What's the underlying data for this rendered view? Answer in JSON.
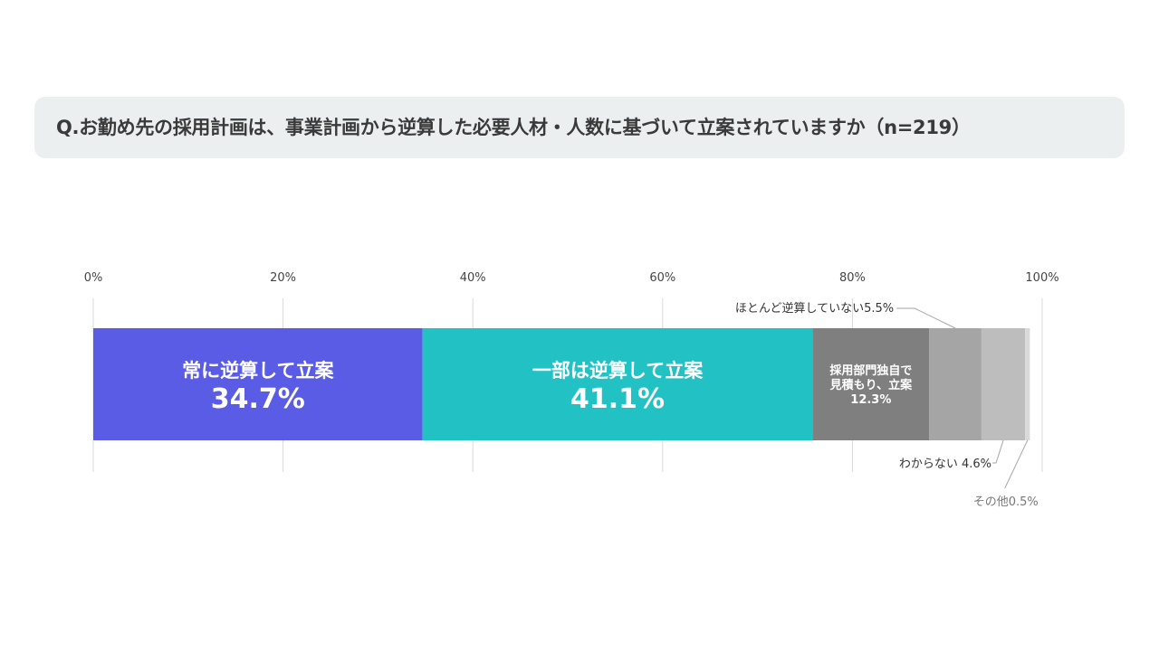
{
  "question": {
    "text": "Q.お勤め先の採用計画は、事業計画から逆算した必要人材・人数に基づいて立案されていますか（n=219）"
  },
  "chart_data": {
    "type": "bar",
    "orientation": "horizontal",
    "stacked": true,
    "xlim": [
      0,
      100
    ],
    "ticks": [
      "0%",
      "20%",
      "40%",
      "60%",
      "80%",
      "100%"
    ],
    "grid": true,
    "series": [
      {
        "name": "常に逆算して立案",
        "value": 34.7,
        "value_label": "34.7%",
        "color": "#5a5ce6",
        "label_position": "inside"
      },
      {
        "name": "一部は逆算して立案",
        "value": 41.1,
        "value_label": "41.1%",
        "color": "#21c1c4",
        "label_position": "inside"
      },
      {
        "name": "採用部門独自で見積もり、立案",
        "value": 12.3,
        "value_label": "12.3%",
        "color": "#7f7f7f",
        "label_position": "inside",
        "label_lines": [
          "採用部門独自で",
          "見積もり、立案",
          "12.3%"
        ]
      },
      {
        "name": "ほとんど逆算していない",
        "value": 5.5,
        "value_label": "5.5%",
        "color": "#a5a5a5",
        "label_position": "above",
        "callout": "ほとんど逆算していない5.5%"
      },
      {
        "name": "わからない",
        "value": 4.6,
        "value_label": "4.6%",
        "color": "#bdbdbd",
        "label_position": "below",
        "callout": "わからない 4.6%"
      },
      {
        "name": "その他",
        "value": 0.5,
        "value_label": "0.5%",
        "color": "#d9d9d9",
        "label_position": "below",
        "callout": "その他0.5%"
      }
    ]
  }
}
